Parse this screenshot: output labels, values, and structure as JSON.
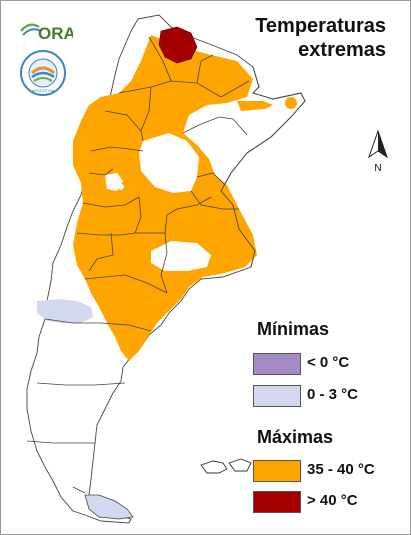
{
  "header": {
    "title_line1": "Temperaturas",
    "title_line2": "extremas"
  },
  "logo": {
    "text": "ORA",
    "seal_text": "ARGENTINA"
  },
  "compass": {
    "label": "N"
  },
  "legend": {
    "minimas": {
      "title": "Mínimas",
      "items": [
        {
          "label": "< 0 °C",
          "color": "#a78bc6"
        },
        {
          "label": "0 - 3 °C",
          "color": "#d3d8ee"
        }
      ]
    },
    "maximas": {
      "title": "Máximas",
      "items": [
        {
          "label": "35 - 40 °C",
          "color": "#ffa500"
        },
        {
          "label": "> 40 °C",
          "color": "#a50000"
        }
      ]
    }
  },
  "colors": {
    "heat": "#ffa500",
    "extreme": "#a50000",
    "cold": "#d3d8ee",
    "border": "#444444"
  }
}
